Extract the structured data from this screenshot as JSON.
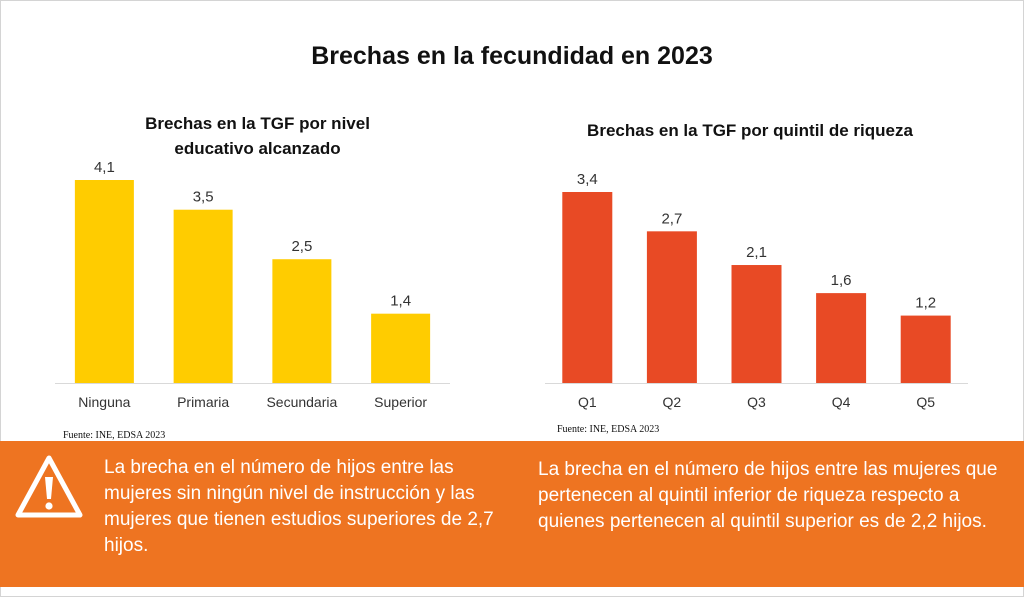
{
  "title": "Brechas en la fecundidad en 2023",
  "colors": {
    "left_bars": "#FFCC00",
    "right_bars": "#E84A25",
    "banner": "#EE7421",
    "baseline": "#d9d9d9"
  },
  "chart_data": [
    {
      "type": "bar",
      "title": "Brechas en la TGF por nivel educativo alcanzado",
      "title_lines": [
        "Brechas en la TGF por nivel",
        "educativo alcanzado"
      ],
      "categories": [
        "Ninguna",
        "Primaria",
        "Secundaria",
        "Superior"
      ],
      "values": [
        4.1,
        3.5,
        2.5,
        1.4
      ],
      "value_labels": [
        "4,1",
        "3,5",
        "2,5",
        "1,4"
      ],
      "ylim": [
        0,
        4.1
      ],
      "grid": false,
      "xlabel": "",
      "ylabel": "",
      "source": "Fuente: INE, EDSA 2023"
    },
    {
      "type": "bar",
      "title": "Brechas en la TGF por quintil de riqueza",
      "categories": [
        "Q1",
        "Q2",
        "Q3",
        "Q4",
        "Q5"
      ],
      "values": [
        3.4,
        2.7,
        2.1,
        1.6,
        1.2
      ],
      "value_labels": [
        "3,4",
        "2,7",
        "2,1",
        "1,6",
        "1,2"
      ],
      "ylim": [
        0,
        3.4
      ],
      "grid": false,
      "xlabel": "",
      "ylabel": "",
      "source": "Fuente: INE, EDSA 2023"
    }
  ],
  "banner": {
    "icon": "warning-icon",
    "left_text": "La brecha en el número de hijos entre las mujeres sin ningún nivel de instrucción y las mujeres que tienen estudios superiores de 2,7 hijos.",
    "right_text": "La brecha en el número de hijos entre las mujeres que pertenecen al quintil inferior de riqueza respecto a quienes pertenecen al quintil superior es de 2,2 hijos."
  }
}
